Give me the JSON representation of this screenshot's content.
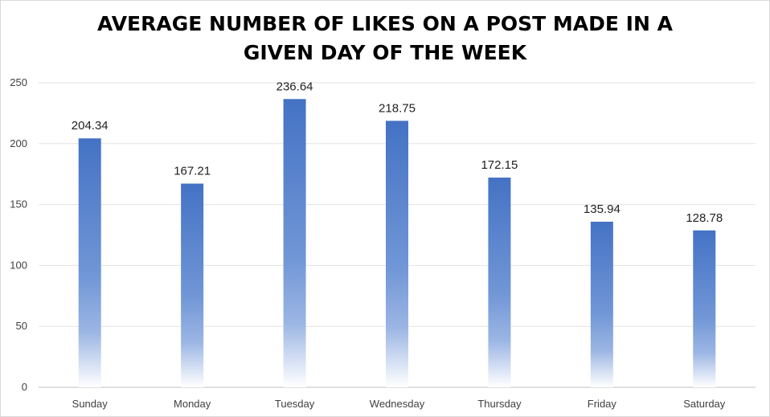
{
  "chart_data": {
    "type": "bar",
    "title_lines": [
      "AVERAGE NUMBER OF LIKES ON A POST MADE IN A",
      "GIVEN DAY OF THE WEEK"
    ],
    "categories": [
      "Sunday",
      "Monday",
      "Tuesday",
      "Wednesday",
      "Thursday",
      "Friday",
      "Saturday"
    ],
    "values": [
      204.34,
      167.21,
      236.64,
      218.75,
      172.15,
      135.94,
      128.78
    ],
    "data_labels": [
      "204.34",
      "167.21",
      "236.64",
      "218.75",
      "172.15",
      "135.94",
      "128.78"
    ],
    "y_ticks": [
      0,
      50,
      100,
      150,
      200,
      250
    ],
    "ylim": [
      0,
      250
    ],
    "grid": true,
    "legend": "none",
    "bar_color": "#4472c4",
    "bar_fill": "gradient fading to white at the base"
  }
}
